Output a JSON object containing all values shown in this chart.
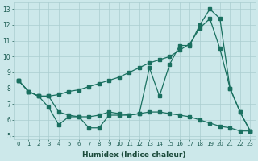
{
  "xlabel": "Humidex (Indice chaleur)",
  "bg_color": "#cce8ea",
  "grid_color": "#aacdd0",
  "line_color": "#1a7060",
  "xlim_min": -0.5,
  "xlim_max": 23.5,
  "ylim_min": 4.8,
  "ylim_max": 13.4,
  "yticks": [
    5,
    6,
    7,
    8,
    9,
    10,
    11,
    12,
    13
  ],
  "xticks": [
    0,
    1,
    2,
    3,
    4,
    5,
    6,
    7,
    8,
    9,
    10,
    11,
    12,
    13,
    14,
    15,
    16,
    17,
    18,
    19,
    20,
    21,
    22,
    23
  ],
  "line1_x": [
    0,
    1,
    2,
    3,
    4,
    5,
    6,
    7,
    8,
    9,
    10,
    11,
    12,
    13,
    14,
    15,
    16,
    17,
    18,
    19,
    20,
    21,
    22,
    23
  ],
  "line1_y": [
    8.5,
    7.8,
    7.5,
    7.5,
    6.5,
    6.3,
    6.2,
    6.2,
    6.3,
    6.5,
    6.4,
    6.3,
    6.4,
    6.5,
    6.5,
    6.4,
    6.3,
    6.2,
    6.0,
    5.8,
    5.6,
    5.5,
    5.3,
    5.3
  ],
  "line2_x": [
    0,
    1,
    2,
    3,
    4,
    5,
    6,
    7,
    8,
    9,
    10,
    11,
    12,
    13,
    14,
    15,
    16,
    17,
    18,
    19,
    20,
    21,
    22,
    23
  ],
  "line2_y": [
    8.5,
    7.8,
    7.5,
    6.8,
    5.7,
    6.2,
    6.2,
    5.5,
    5.5,
    6.3,
    6.3,
    6.3,
    6.4,
    9.3,
    7.5,
    9.5,
    10.7,
    10.7,
    12.0,
    13.0,
    12.4,
    8.0,
    6.5,
    5.3
  ],
  "line3_x": [
    0,
    1,
    2,
    3,
    4,
    5,
    6,
    7,
    8,
    9,
    10,
    11,
    12,
    13,
    14,
    15,
    16,
    17,
    18,
    19,
    20,
    21,
    22,
    23
  ],
  "line3_y": [
    8.5,
    7.8,
    7.5,
    7.5,
    7.6,
    7.8,
    7.9,
    8.1,
    8.3,
    8.5,
    8.7,
    9.0,
    9.3,
    9.6,
    9.8,
    10.0,
    10.4,
    10.8,
    11.8,
    12.4,
    10.5,
    8.0,
    6.5,
    5.3
  ]
}
